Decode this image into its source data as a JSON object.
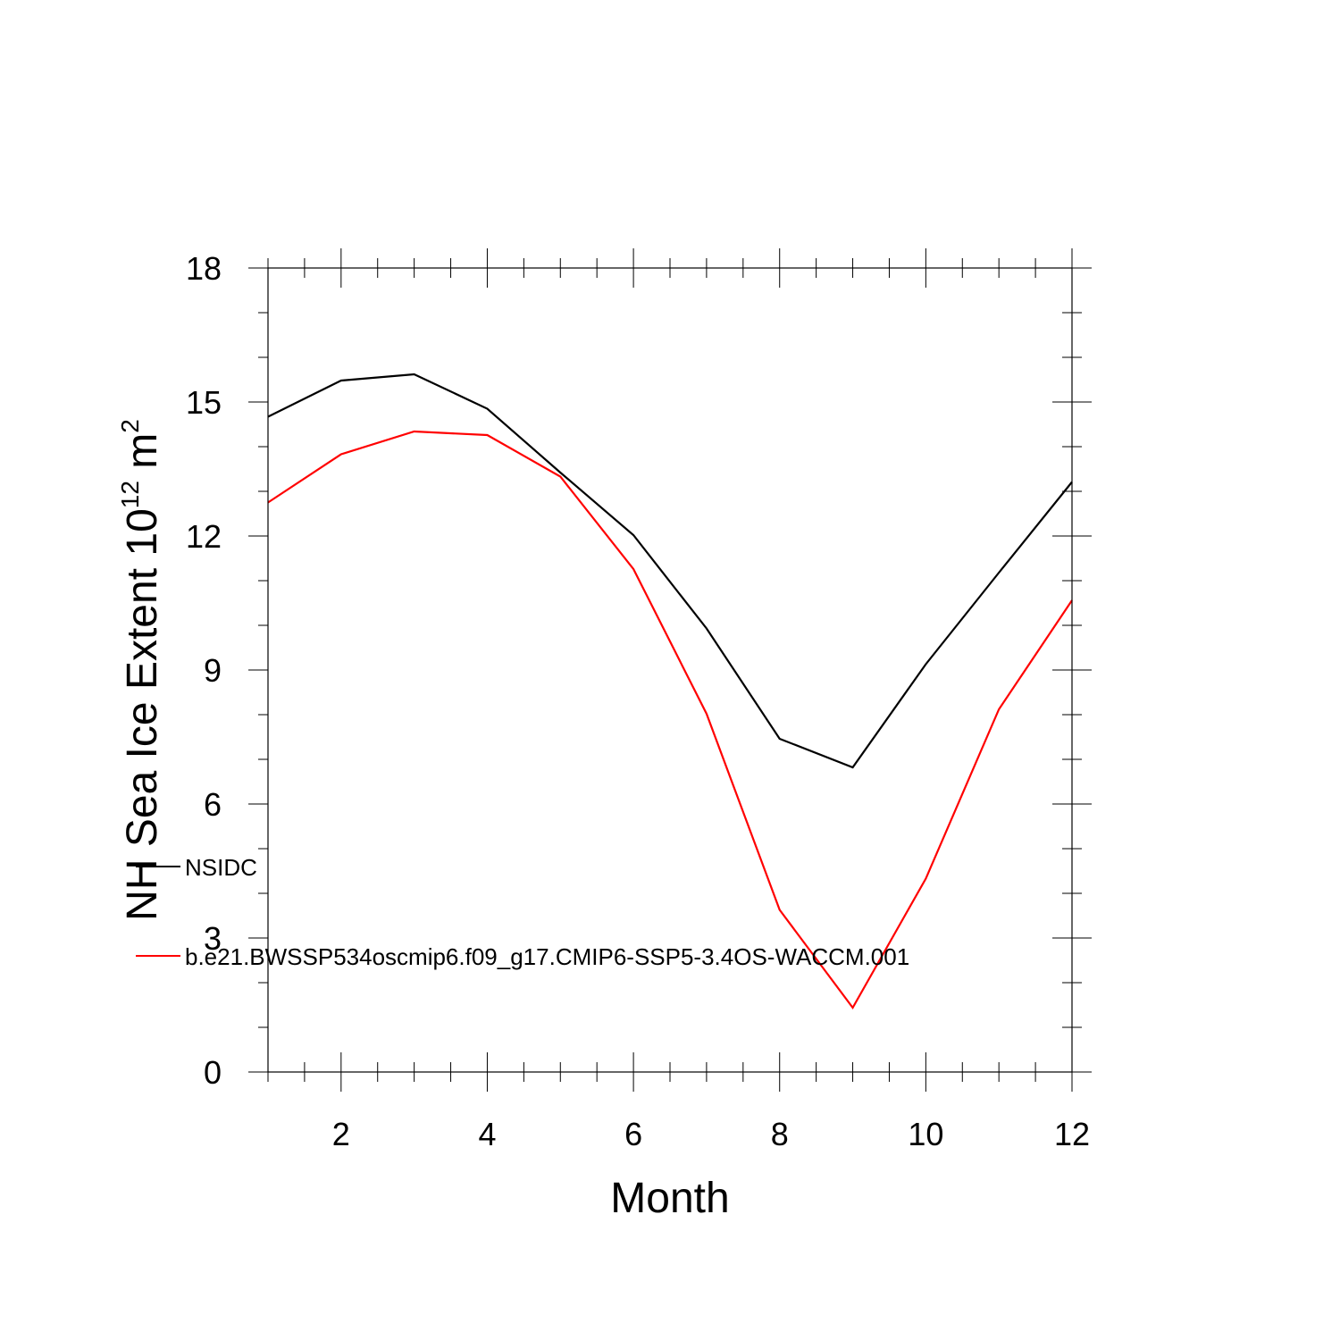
{
  "chart_data": {
    "type": "line",
    "title": "",
    "xlabel": "Month",
    "ylabel_parts": {
      "prefix": "NH Sea Ice Extent 10",
      "exp1": "12",
      "unit": " m",
      "exp2": "2"
    },
    "xlim": [
      1,
      12
    ],
    "ylim": [
      0,
      18
    ],
    "x_major_ticks": [
      2,
      4,
      6,
      8,
      10,
      12
    ],
    "x_tick_labels": [
      "2",
      "4",
      "6",
      "8",
      "10",
      "12"
    ],
    "y_major_ticks": [
      0,
      3,
      6,
      9,
      12,
      15,
      18
    ],
    "y_tick_labels": [
      "0",
      "3",
      "6",
      "9",
      "12",
      "15",
      "18"
    ],
    "grid": false,
    "legend_placement": "lower-left (inside plot)",
    "x": [
      1,
      2,
      3,
      4,
      5,
      6,
      7,
      8,
      9,
      10,
      11,
      12
    ],
    "series": [
      {
        "name": "NSIDC",
        "color": "#000000",
        "values": [
          14.67,
          15.48,
          15.62,
          14.85,
          13.42,
          12.02,
          9.93,
          7.46,
          6.82,
          9.13,
          11.18,
          13.21
        ]
      },
      {
        "name": "b.e21.BWSSP534oscmip6.f09_g17.CMIP6-SSP5-3.4OS-WACCM.001",
        "color": "#ff0000",
        "values": [
          12.75,
          13.83,
          14.34,
          14.26,
          13.33,
          11.26,
          8.02,
          3.63,
          1.44,
          4.33,
          8.12,
          10.56
        ]
      }
    ]
  }
}
